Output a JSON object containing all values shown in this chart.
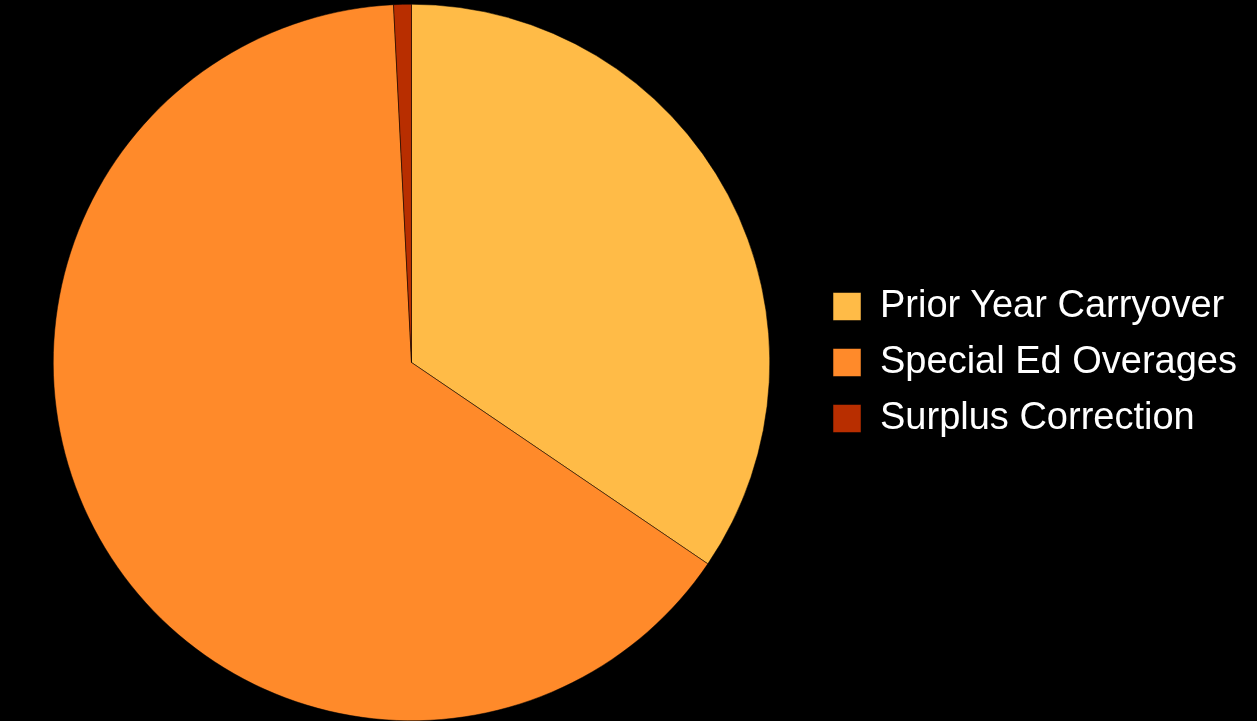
{
  "chart_data": {
    "type": "pie",
    "categories": [
      "Prior Year Carryover",
      "Special Ed Overages",
      "Surplus Correction"
    ],
    "values": [
      34.5,
      64.7,
      0.8
    ],
    "colors": [
      "#ffbb47",
      "#ff8a2a",
      "#b82e00"
    ],
    "legend": "right"
  }
}
